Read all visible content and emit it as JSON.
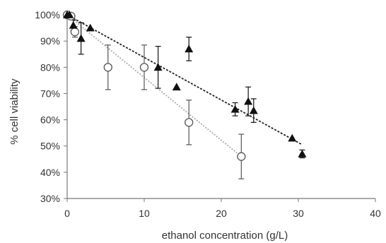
{
  "chart_data": {
    "type": "scatter",
    "title": "",
    "xlabel": "ethanol concentration (g/L)",
    "ylabel": "% cell viability",
    "xlim": [
      0,
      40
    ],
    "ylim": [
      30,
      100
    ],
    "x_ticks": [
      "0",
      "10",
      "20",
      "30",
      "40"
    ],
    "y_ticks": [
      "30%",
      "40%",
      "50%",
      "60%",
      "70%",
      "80%",
      "90%",
      "100%"
    ],
    "x_tick_values": [
      0,
      10,
      20,
      30,
      40
    ],
    "y_tick_values": [
      30,
      40,
      50,
      60,
      70,
      80,
      90,
      100
    ],
    "grid": false,
    "legend": "none",
    "series": [
      {
        "marker": "open-circle",
        "color": "#555555",
        "points": [
          {
            "x": 0,
            "y": 100,
            "err": 0
          },
          {
            "x": 0.5,
            "y": 99.5,
            "err": 0
          },
          {
            "x": 1,
            "y": 93.5,
            "err": 2
          },
          {
            "x": 5.3,
            "y": 80,
            "err": 8.5
          },
          {
            "x": 10,
            "y": 80,
            "err": 8.5
          },
          {
            "x": 15.8,
            "y": 59,
            "err": 8.5
          },
          {
            "x": 22.6,
            "y": 46,
            "err": 8.5
          }
        ],
        "trendline": {
          "x": [
            0,
            22.6
          ],
          "y": [
            100,
            46
          ],
          "style": "dotted",
          "color": "#aaaaaa"
        }
      },
      {
        "marker": "filled-triangle",
        "color": "#111111",
        "points": [
          {
            "x": 0,
            "y": 100,
            "err": 0
          },
          {
            "x": 0.3,
            "y": 100,
            "err": 0
          },
          {
            "x": 0.8,
            "y": 96,
            "err": 2
          },
          {
            "x": 1.8,
            "y": 91,
            "err": 6
          },
          {
            "x": 3,
            "y": 95,
            "err": 0
          },
          {
            "x": 11.8,
            "y": 80,
            "err": 8
          },
          {
            "x": 14.2,
            "y": 72.5,
            "err": 0
          },
          {
            "x": 15.8,
            "y": 87,
            "err": 4.5
          },
          {
            "x": 21.8,
            "y": 64,
            "err": 2.5
          },
          {
            "x": 23.5,
            "y": 67,
            "err": 5.5
          },
          {
            "x": 24.2,
            "y": 63.5,
            "err": 4.5
          },
          {
            "x": 29.2,
            "y": 53,
            "err": 0
          },
          {
            "x": 30.5,
            "y": 47,
            "err": 1.5
          }
        ],
        "trendline": {
          "x": [
            0,
            30.5
          ],
          "y": [
            100,
            50.5
          ],
          "style": "dotted",
          "color": "#222222"
        }
      }
    ]
  }
}
